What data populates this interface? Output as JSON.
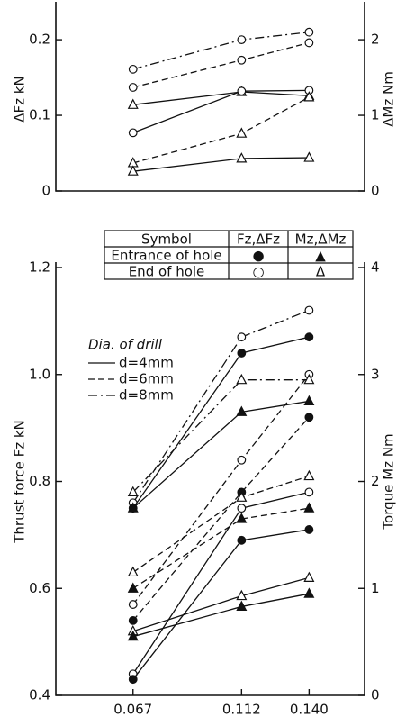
{
  "chart_data": [
    {
      "type": "line",
      "ylabel": "ΔFz  kN",
      "y2label": "ΔMz  Nm",
      "x": [
        0.067,
        0.112,
        {
          "value": 0.14,
          "label": "0.140"
        }
      ],
      "xlim": [
        0.035,
        0.163
      ],
      "ylim": [
        0,
        0.243
      ],
      "y2lim": [
        0,
        2.43
      ],
      "yticks": [
        0,
        0.1,
        0.2
      ],
      "y2ticks": [
        0,
        1,
        2
      ],
      "series": [
        {
          "color": "#111",
          "dash": "dashdot",
          "marker": "circle",
          "filled": false,
          "values": [
            0.161,
            0.2,
            0.21
          ]
        },
        {
          "color": "#111",
          "dash": "dashed",
          "marker": "circle",
          "filled": false,
          "values": [
            0.137,
            0.173,
            0.196
          ]
        },
        {
          "color": "#111",
          "dash": "solid",
          "marker": "triangle",
          "filled": false,
          "axis": "y2",
          "values": [
            1.14,
            1.31,
            1.26
          ]
        },
        {
          "color": "#111",
          "dash": "solid",
          "marker": "circle",
          "filled": false,
          "values": [
            0.077,
            0.132,
            0.133
          ]
        },
        {
          "color": "#111",
          "dash": "dashed",
          "marker": "triangle",
          "filled": false,
          "axis": "y2",
          "values": [
            0.37,
            0.76,
            1.24
          ]
        },
        {
          "color": "#111",
          "dash": "solid",
          "marker": "triangle",
          "filled": false,
          "axis": "y2",
          "values": [
            0.26,
            0.43,
            0.44
          ]
        }
      ]
    },
    {
      "type": "line",
      "xlabel": "Feed rate   s mm/rev",
      "ylabel": "Thrust force  Fz  kN",
      "y2label": "Torque   Mz  Nm",
      "x": [
        0.067,
        0.112,
        {
          "value": 0.14,
          "label": "0.140"
        }
      ],
      "xlim": [
        0.035,
        0.163
      ],
      "ylim": [
        0.4,
        1.2
      ],
      "y2lim": [
        0,
        4
      ],
      "xticks": [
        0.067,
        0.112,
        {
          "value": 0.14,
          "label": "0.140"
        }
      ],
      "yticks": [
        0.4,
        0.6,
        0.8,
        {
          "value": 1.0,
          "label": "1.0"
        },
        1.2
      ],
      "y2ticks": [
        0,
        1,
        2,
        3,
        4
      ],
      "legend": {
        "title": "Dia. of drill",
        "entries": [
          {
            "label": "d=4mm",
            "dash": "solid"
          },
          {
            "label": "d=6mm",
            "dash": "dashed"
          },
          {
            "label": "d=8mm",
            "dash": "dashdot"
          }
        ]
      },
      "table": {
        "header": [
          "Symbol",
          "Fz,ΔFz",
          "Mz,ΔMz"
        ],
        "rows": [
          [
            "Entrance of hole",
            "●",
            "▲"
          ],
          [
            "End   of   hole",
            "○",
            "Δ"
          ]
        ]
      },
      "series": [
        {
          "color": "#111",
          "dash": "dashdot",
          "marker": "circle",
          "filled": false,
          "values": [
            0.76,
            1.07,
            1.12
          ]
        },
        {
          "color": "#111",
          "dash": "solid",
          "marker": "circle",
          "filled": true,
          "values": [
            0.75,
            1.04,
            1.07
          ]
        },
        {
          "color": "#111",
          "dash": "dashed",
          "marker": "circle",
          "filled": false,
          "values": [
            0.57,
            0.84,
            1.0
          ]
        },
        {
          "color": "#111",
          "dash": "dashed",
          "marker": "circle",
          "filled": true,
          "values": [
            0.54,
            0.78,
            0.92
          ]
        },
        {
          "color": "#111",
          "dash": "solid",
          "marker": "circle",
          "filled": false,
          "values": [
            0.44,
            0.75,
            0.78
          ]
        },
        {
          "color": "#111",
          "dash": "solid",
          "marker": "circle",
          "filled": true,
          "values": [
            0.43,
            0.69,
            0.71
          ]
        },
        {
          "color": "#111",
          "dash": "dashdot",
          "marker": "triangle",
          "filled": false,
          "axis": "y2",
          "values": [
            1.9,
            2.95,
            2.95
          ]
        },
        {
          "color": "#111",
          "dash": "solid",
          "marker": "triangle",
          "filled": true,
          "axis": "y2",
          "values": [
            1.75,
            2.65,
            2.75
          ]
        },
        {
          "color": "#111",
          "dash": "dashed",
          "marker": "triangle",
          "filled": false,
          "axis": "y2",
          "values": [
            1.15,
            1.85,
            2.05
          ]
        },
        {
          "color": "#111",
          "dash": "dashed",
          "marker": "triangle",
          "filled": true,
          "axis": "y2",
          "values": [
            1.0,
            1.65,
            1.75
          ]
        },
        {
          "color": "#111",
          "dash": "solid",
          "marker": "triangle",
          "filled": false,
          "axis": "y2",
          "values": [
            0.6,
            0.93,
            1.1
          ]
        },
        {
          "color": "#111",
          "dash": "solid",
          "marker": "triangle",
          "filled": true,
          "axis": "y2",
          "values": [
            0.55,
            0.83,
            0.95
          ]
        }
      ]
    }
  ]
}
